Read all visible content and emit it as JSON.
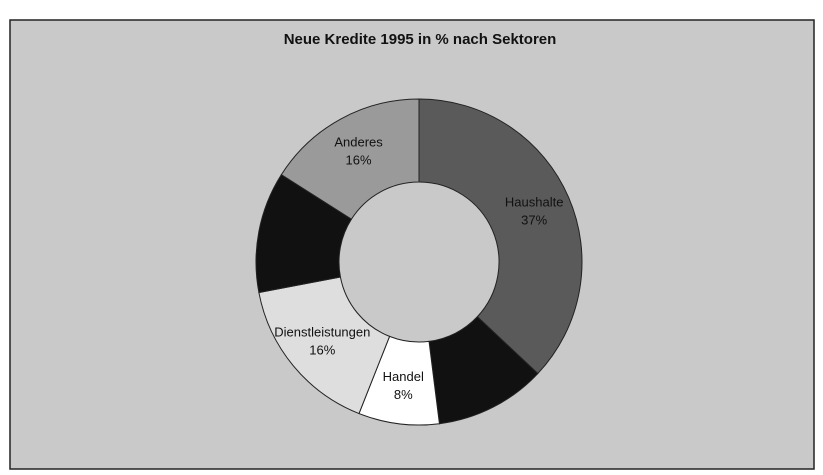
{
  "chart_data": {
    "type": "donut",
    "title": "Neue Kredite 1995 in % nach Sektoren",
    "categories": [
      "Haushalte",
      null,
      "Handel",
      "Dienstleistungen",
      null,
      "Anderes"
    ],
    "values": [
      37,
      11,
      8,
      16,
      12,
      16
    ],
    "value_labels": [
      "37%",
      null,
      "8%",
      "16%",
      null,
      "16%"
    ],
    "colors": [
      "#5a5a5a",
      "#111111",
      "#ffffff",
      "#dedede",
      "#111111",
      "#9a9a9a"
    ]
  }
}
